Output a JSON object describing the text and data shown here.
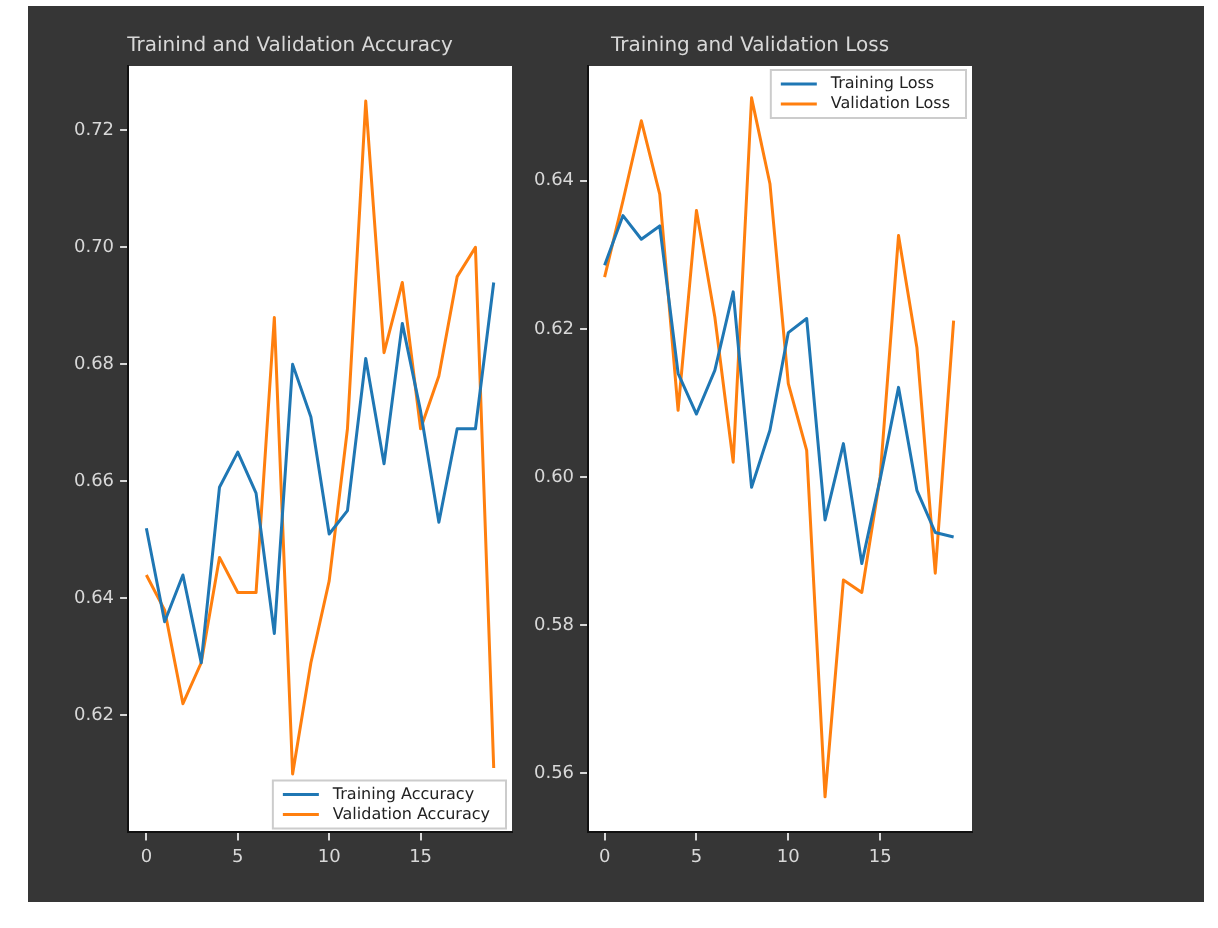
{
  "chart_data": [
    {
      "type": "line",
      "title": "Trainind and Validation Accuracy",
      "x": [
        0,
        1,
        2,
        3,
        4,
        5,
        6,
        7,
        8,
        9,
        10,
        11,
        12,
        13,
        14,
        15,
        16,
        17,
        18,
        19
      ],
      "series": [
        {
          "name": "Training Accuracy",
          "color": "#1f77b4",
          "values": [
            0.652,
            0.636,
            0.644,
            0.629,
            0.659,
            0.665,
            0.658,
            0.634,
            0.68,
            0.671,
            0.651,
            0.655,
            0.681,
            0.663,
            0.687,
            0.672,
            0.653,
            0.669,
            0.669,
            0.694
          ]
        },
        {
          "name": "Validation Accuracy",
          "color": "#ff7f0e",
          "values": [
            0.644,
            0.638,
            0.622,
            0.629,
            0.647,
            0.641,
            0.641,
            0.688,
            0.61,
            0.629,
            0.643,
            0.669,
            0.725,
            0.682,
            0.694,
            0.669,
            0.678,
            0.695,
            0.7,
            0.611
          ]
        }
      ],
      "xlim": [
        -1,
        20
      ],
      "xticks": [
        0,
        5,
        10,
        15
      ],
      "ylim": [
        0.6,
        0.731
      ],
      "yticks": [
        {
          "value": 0.62,
          "label": "0.62"
        },
        {
          "value": 0.64,
          "label": "0.64"
        },
        {
          "value": 0.66,
          "label": "0.66"
        },
        {
          "value": 0.68,
          "label": "0.68"
        },
        {
          "value": 0.7,
          "label": "0.70"
        },
        {
          "value": 0.72,
          "label": "0.72"
        }
      ],
      "legend": "bottom right",
      "grid": false
    },
    {
      "type": "line",
      "title": "Training and Validation Loss",
      "x": [
        0,
        1,
        2,
        3,
        4,
        5,
        6,
        7,
        8,
        9,
        10,
        11,
        12,
        13,
        14,
        15,
        16,
        17,
        18,
        19
      ],
      "series": [
        {
          "name": "Training Loss",
          "color": "#1f77b4",
          "values": [
            0.6286,
            0.6353,
            0.6321,
            0.6339,
            0.614,
            0.6085,
            0.6144,
            0.625,
            0.5986,
            0.6063,
            0.6195,
            0.6214,
            0.5942,
            0.6045,
            0.5883,
            0.5997,
            0.6121,
            0.5982,
            0.5925,
            0.5919
          ]
        },
        {
          "name": "Validation Loss",
          "color": "#ff7f0e",
          "values": [
            0.627,
            0.6373,
            0.6481,
            0.6382,
            0.609,
            0.636,
            0.6216,
            0.602,
            0.6512,
            0.6396,
            0.6126,
            0.6036,
            0.5568,
            0.5861,
            0.5844,
            0.6,
            0.6326,
            0.6175,
            0.587,
            0.6211
          ]
        }
      ],
      "xlim": [
        -0.9,
        20
      ],
      "xticks": [
        0,
        5,
        10,
        15
      ],
      "ylim": [
        0.552,
        0.6555
      ],
      "yticks": [
        {
          "value": 0.56,
          "label": "0.56"
        },
        {
          "value": 0.58,
          "label": "0.58"
        },
        {
          "value": 0.6,
          "label": "0.60"
        },
        {
          "value": 0.62,
          "label": "0.62"
        },
        {
          "value": 0.64,
          "label": "0.64"
        }
      ],
      "legend": "top right",
      "grid": false
    }
  ]
}
